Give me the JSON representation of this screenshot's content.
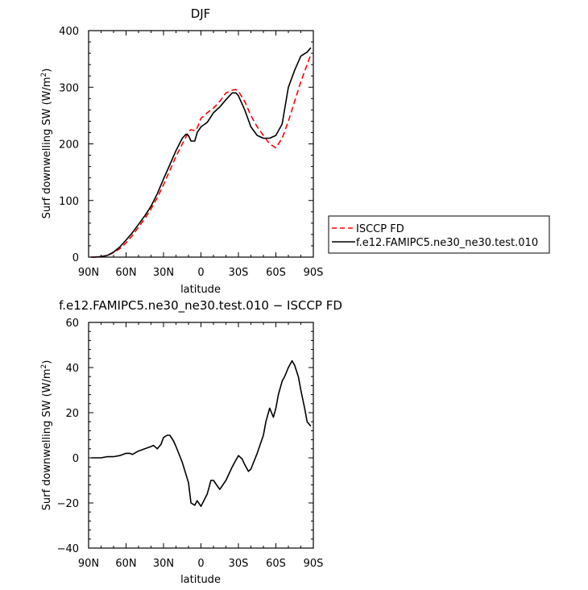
{
  "chart_data": [
    {
      "type": "line",
      "title": "DJF",
      "xlabel": "latitude",
      "ylabel": "Surf downwelling SW (W/m",
      "ylabel_sup": "2",
      "ylabel_close": ")",
      "xlim": [
        90,
        -90
      ],
      "ylim": [
        0,
        400
      ],
      "xticks": [
        90,
        60,
        30,
        0,
        -30,
        -60,
        -90
      ],
      "xticklabels": [
        "90N",
        "60N",
        "30N",
        "0",
        "30S",
        "60S",
        "90S"
      ],
      "yticks": [
        0,
        100,
        200,
        300,
        400
      ],
      "yticklabels": [
        "0",
        "100",
        "200",
        "300",
        "400"
      ],
      "legend_position": "outside-right",
      "series": [
        {
          "name": "ISCCP FD",
          "color": "#ff0000",
          "dash": "dashed",
          "x": [
            88,
            85,
            80,
            75,
            70,
            65,
            60,
            55,
            50,
            45,
            40,
            35,
            30,
            25,
            20,
            15,
            12,
            10,
            8,
            5,
            3,
            0,
            -5,
            -10,
            -15,
            -20,
            -25,
            -28,
            -30,
            -35,
            -40,
            -45,
            -50,
            -55,
            -60,
            -65,
            -70,
            -75,
            -80,
            -85,
            -88
          ],
          "y": [
            0,
            0,
            1,
            3,
            8,
            15,
            25,
            38,
            53,
            68,
            85,
            105,
            128,
            153,
            178,
            200,
            212,
            222,
            225,
            223,
            228,
            245,
            255,
            263,
            275,
            290,
            295,
            296,
            293,
            275,
            250,
            230,
            215,
            200,
            193,
            210,
            240,
            275,
            310,
            340,
            358
          ]
        },
        {
          "name": "f.e12.FAMIPC5.ne30_ne30.test.010",
          "color": "#000000",
          "dash": "solid",
          "x": [
            88,
            85,
            80,
            75,
            70,
            65,
            60,
            55,
            50,
            45,
            40,
            35,
            30,
            25,
            20,
            15,
            12,
            10,
            8,
            5,
            3,
            0,
            -5,
            -10,
            -15,
            -20,
            -25,
            -28,
            -30,
            -35,
            -40,
            -45,
            -50,
            -55,
            -60,
            -65,
            -70,
            -75,
            -80,
            -85,
            -88
          ],
          "y": [
            0,
            0,
            1,
            3,
            9,
            18,
            30,
            43,
            58,
            73,
            90,
            112,
            138,
            163,
            188,
            210,
            217,
            215,
            205,
            205,
            220,
            230,
            238,
            255,
            265,
            278,
            290,
            290,
            285,
            260,
            230,
            215,
            210,
            210,
            215,
            235,
            300,
            330,
            355,
            362,
            370
          ]
        }
      ]
    },
    {
      "type": "line",
      "title": "f.e12.FAMIPC5.ne30_ne30.test.010 − ISCCP FD",
      "xlabel": "latitude",
      "ylabel": "Surf downwelling SW (W/m",
      "ylabel_sup": "2",
      "ylabel_close": ")",
      "xlim": [
        90,
        -90
      ],
      "ylim": [
        -40,
        60
      ],
      "xticks": [
        90,
        60,
        30,
        0,
        -30,
        -60,
        -90
      ],
      "xticklabels": [
        "90N",
        "60N",
        "30N",
        "0",
        "30S",
        "60S",
        "90S"
      ],
      "yticks": [
        -40,
        -20,
        0,
        20,
        40,
        60
      ],
      "yticklabels": [
        "−40",
        "−20",
        "0",
        "20",
        "40",
        "60"
      ],
      "series": [
        {
          "color": "#000000",
          "dash": "solid",
          "x": [
            88,
            80,
            75,
            70,
            65,
            60,
            57,
            55,
            50,
            45,
            40,
            38,
            35,
            32,
            30,
            27,
            25,
            22,
            20,
            15,
            10,
            8,
            5,
            3,
            0,
            -5,
            -8,
            -10,
            -15,
            -20,
            -25,
            -28,
            -30,
            -33,
            -35,
            -38,
            -40,
            -45,
            -50,
            -52,
            -55,
            -58,
            -60,
            -62,
            -65,
            -67,
            -70,
            -73,
            -75,
            -78,
            -80,
            -83,
            -85,
            -88
          ],
          "y": [
            0,
            0,
            0.5,
            0.5,
            1,
            2,
            2,
            1.5,
            3,
            4,
            5,
            5.5,
            4,
            6,
            9,
            10,
            10,
            7.5,
            5,
            -2,
            -11,
            -20,
            -21,
            -19,
            -21.5,
            -16,
            -10,
            -10,
            -14,
            -10,
            -4,
            -1,
            1,
            -0.5,
            -3,
            -6,
            -5,
            2,
            10,
            16,
            22,
            18,
            22,
            28,
            34,
            36,
            40,
            43,
            41,
            36,
            30,
            22,
            16,
            14
          ]
        }
      ]
    }
  ]
}
